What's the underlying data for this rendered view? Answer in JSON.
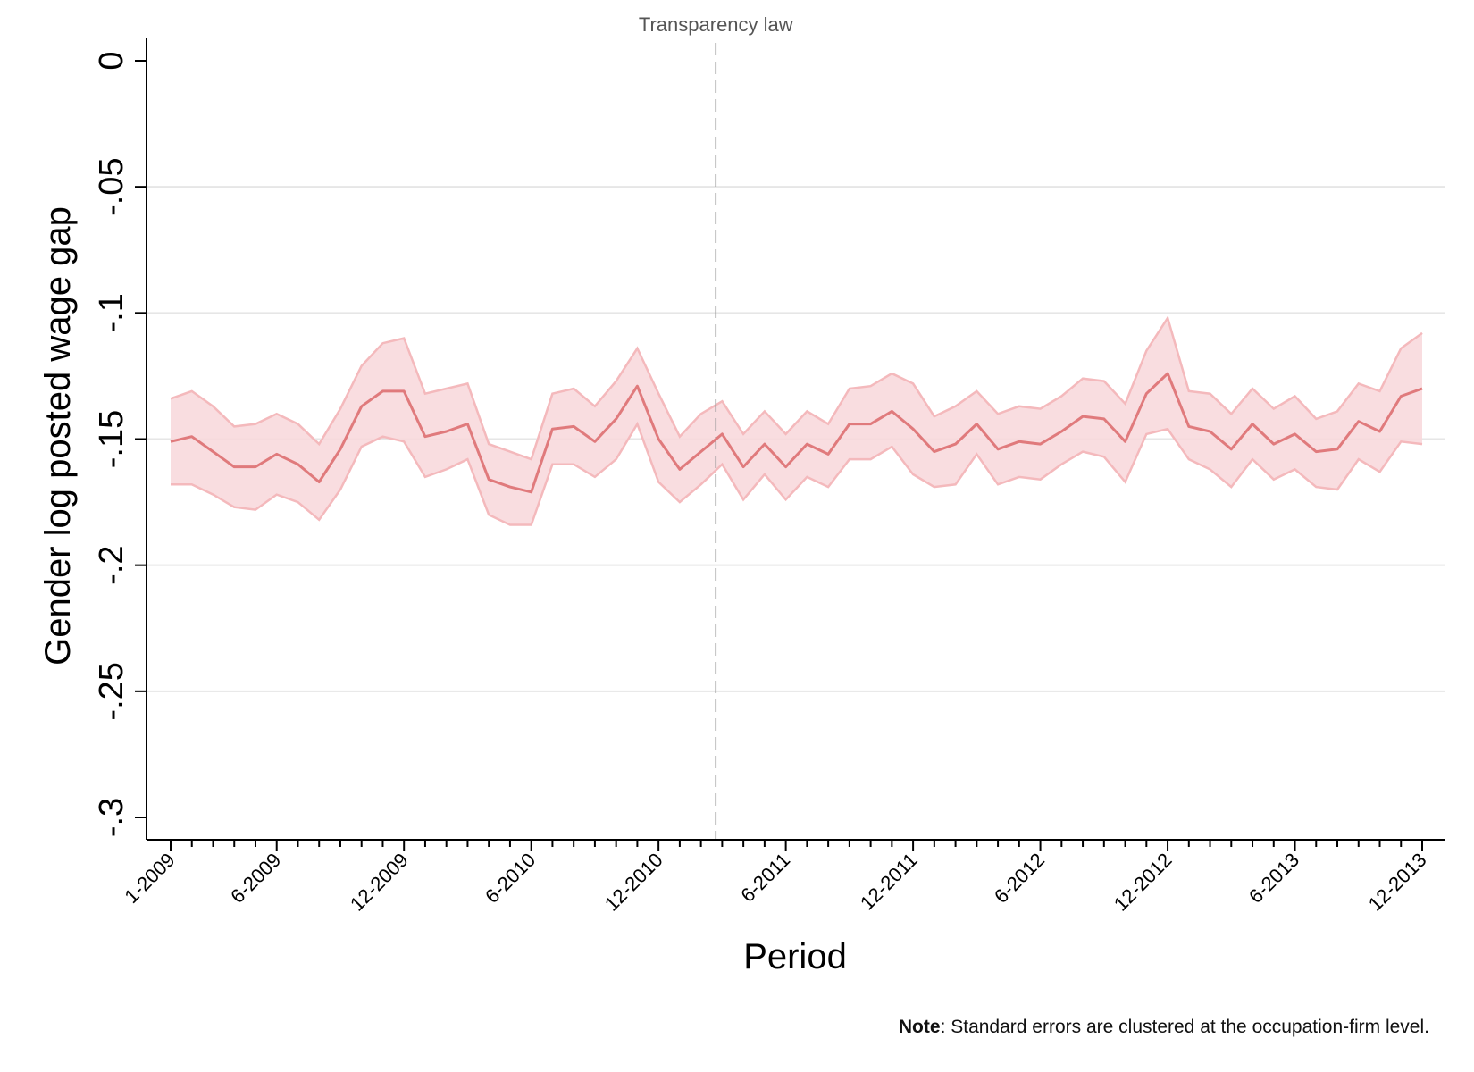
{
  "chart_data": {
    "type": "line",
    "title": "",
    "xlabel": "Period",
    "ylabel": "Gender log posted wage gap",
    "ylim": [
      -0.3,
      0
    ],
    "yticks": [
      0,
      -0.05,
      -0.1,
      -0.15,
      -0.2,
      -0.25,
      -0.3
    ],
    "ytick_labels": [
      "0",
      "-.05",
      "-.1",
      "-.15",
      "-.2",
      "-.25",
      "-.3"
    ],
    "grid": true,
    "x_start": "1-2009",
    "x_count": 60,
    "xtick_labels": [
      {
        "index": 0,
        "label": "1-2009"
      },
      {
        "index": 5,
        "label": "6-2009"
      },
      {
        "index": 11,
        "label": "12-2009"
      },
      {
        "index": 17,
        "label": "6-2010"
      },
      {
        "index": 23,
        "label": "12-2010"
      },
      {
        "index": 29,
        "label": "6-2011"
      },
      {
        "index": 35,
        "label": "12-2011"
      },
      {
        "index": 41,
        "label": "6-2012"
      },
      {
        "index": 47,
        "label": "12-2012"
      },
      {
        "index": 53,
        "label": "6-2013"
      },
      {
        "index": 59,
        "label": "12-2013"
      }
    ],
    "vline": {
      "index": 26,
      "label": "Transparency law"
    },
    "colors": {
      "line": "#e07a7c",
      "band": "#f8d7da",
      "band_edge": "#f4b9bc",
      "vline": "#999999"
    },
    "series": [
      {
        "type": "line",
        "values": [
          -0.151,
          -0.149,
          -0.155,
          -0.161,
          -0.161,
          -0.156,
          -0.16,
          -0.167,
          -0.154,
          -0.137,
          -0.131,
          -0.131,
          -0.149,
          -0.147,
          -0.144,
          -0.166,
          -0.169,
          -0.171,
          -0.146,
          -0.145,
          -0.151,
          -0.142,
          -0.129,
          -0.15,
          -0.162,
          -0.155,
          -0.148,
          -0.161,
          -0.152,
          -0.161,
          -0.152,
          -0.156,
          -0.144,
          -0.144,
          -0.139,
          -0.146,
          -0.155,
          -0.152,
          -0.144,
          -0.154,
          -0.151,
          -0.152,
          -0.147,
          -0.141,
          -0.142,
          -0.151,
          -0.132,
          -0.124,
          -0.145,
          -0.147,
          -0.154,
          -0.144,
          -0.152,
          -0.148,
          -0.155,
          -0.154,
          -0.143,
          -0.147,
          -0.133,
          -0.13
        ]
      },
      {
        "type": "band_upper",
        "values": [
          -0.134,
          -0.131,
          -0.137,
          -0.145,
          -0.144,
          -0.14,
          -0.144,
          -0.152,
          -0.138,
          -0.121,
          -0.112,
          -0.11,
          -0.132,
          -0.13,
          -0.128,
          -0.152,
          -0.155,
          -0.158,
          -0.132,
          -0.13,
          -0.137,
          -0.127,
          -0.114,
          -0.132,
          -0.149,
          -0.14,
          -0.135,
          -0.148,
          -0.139,
          -0.148,
          -0.139,
          -0.144,
          -0.13,
          -0.129,
          -0.124,
          -0.128,
          -0.141,
          -0.137,
          -0.131,
          -0.14,
          -0.137,
          -0.138,
          -0.133,
          -0.126,
          -0.127,
          -0.136,
          -0.115,
          -0.102,
          -0.131,
          -0.132,
          -0.14,
          -0.13,
          -0.138,
          -0.133,
          -0.142,
          -0.139,
          -0.128,
          -0.131,
          -0.114,
          -0.108
        ]
      },
      {
        "type": "band_lower",
        "values": [
          -0.168,
          -0.168,
          -0.172,
          -0.177,
          -0.178,
          -0.172,
          -0.175,
          -0.182,
          -0.17,
          -0.153,
          -0.149,
          -0.151,
          -0.165,
          -0.162,
          -0.158,
          -0.18,
          -0.184,
          -0.184,
          -0.16,
          -0.16,
          -0.165,
          -0.158,
          -0.144,
          -0.167,
          -0.175,
          -0.168,
          -0.16,
          -0.174,
          -0.164,
          -0.174,
          -0.165,
          -0.169,
          -0.158,
          -0.158,
          -0.153,
          -0.164,
          -0.169,
          -0.168,
          -0.156,
          -0.168,
          -0.165,
          -0.166,
          -0.16,
          -0.155,
          -0.157,
          -0.167,
          -0.148,
          -0.146,
          -0.158,
          -0.162,
          -0.169,
          -0.158,
          -0.166,
          -0.162,
          -0.169,
          -0.17,
          -0.158,
          -0.163,
          -0.151,
          -0.152
        ]
      }
    ]
  },
  "note": {
    "bold": "Note",
    "text": ": Standard errors are clustered at the occupation-firm level."
  }
}
